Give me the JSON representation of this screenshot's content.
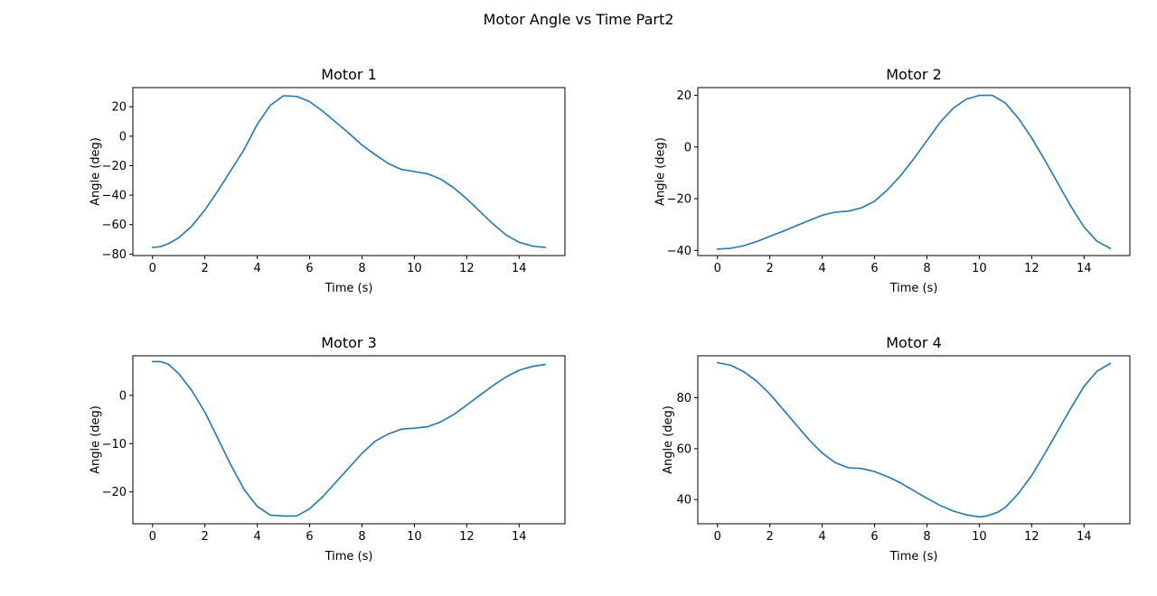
{
  "figure": {
    "title": "Motor Angle vs Time Part2"
  },
  "chart_data": [
    {
      "type": "line",
      "title": "Motor 1",
      "xlabel": "Time (s)",
      "ylabel": "Angle (deg)",
      "xlim": [
        -0.75,
        15.75
      ],
      "ylim": [
        -81,
        33
      ],
      "xticks": [
        0,
        2,
        4,
        6,
        8,
        10,
        12,
        14
      ],
      "yticks": [
        -80,
        -60,
        -40,
        -20,
        0,
        20
      ],
      "series": [
        {
          "color": "#1f77b4",
          "x": [
            0,
            0.3,
            0.6,
            1,
            1.5,
            2,
            2.5,
            3,
            3.5,
            4,
            4.5,
            5,
            5.5,
            6,
            6.5,
            7,
            7.5,
            8,
            8.5,
            9,
            9.5,
            10,
            10.5,
            11,
            11.5,
            12,
            12.5,
            13,
            13.5,
            14,
            14.5,
            15
          ],
          "y": [
            -75.5,
            -75,
            -73,
            -69,
            -61,
            -50,
            -37,
            -23,
            -9,
            8,
            21,
            27.5,
            27,
            23.5,
            17,
            9.5,
            2,
            -6,
            -12.5,
            -18.5,
            -22.5,
            -24,
            -25.5,
            -29,
            -35,
            -42.5,
            -51,
            -59.5,
            -67,
            -72,
            -74.5,
            -75.5
          ]
        }
      ]
    },
    {
      "type": "line",
      "title": "Motor 2",
      "xlabel": "Time (s)",
      "ylabel": "Angle (deg)",
      "xlim": [
        -0.75,
        15.75
      ],
      "ylim": [
        -42,
        23
      ],
      "xticks": [
        0,
        2,
        4,
        6,
        8,
        10,
        12,
        14
      ],
      "yticks": [
        -40,
        -20,
        0,
        20
      ],
      "series": [
        {
          "color": "#1f77b4",
          "x": [
            0,
            0.5,
            1,
            1.5,
            2,
            2.5,
            3,
            3.5,
            4,
            4.5,
            5,
            5.5,
            6,
            6.5,
            7,
            7.5,
            8,
            8.5,
            9,
            9.5,
            10,
            10.5,
            11,
            11.5,
            12,
            12.5,
            13,
            13.5,
            14,
            14.5,
            15
          ],
          "y": [
            -39.5,
            -39.2,
            -38.2,
            -36.6,
            -34.6,
            -32.6,
            -30.5,
            -28.4,
            -26.4,
            -25.2,
            -24.8,
            -23.5,
            -21,
            -16.5,
            -11,
            -4.5,
            2.5,
            9.5,
            15,
            18.5,
            20,
            20,
            17,
            11,
            3.5,
            -5,
            -14,
            -23,
            -31,
            -36.5,
            -39.2
          ]
        }
      ]
    },
    {
      "type": "line",
      "title": "Motor 3",
      "xlabel": "Time (s)",
      "ylabel": "Angle (deg)",
      "xlim": [
        -0.75,
        15.75
      ],
      "ylim": [
        -26.6,
        8.2
      ],
      "xticks": [
        0,
        2,
        4,
        6,
        8,
        10,
        12,
        14
      ],
      "yticks": [
        -20,
        -10,
        0
      ],
      "series": [
        {
          "color": "#1f77b4",
          "x": [
            0,
            0.3,
            0.6,
            1,
            1.5,
            2,
            2.5,
            3,
            3.5,
            4,
            4.5,
            5,
            5.5,
            6,
            6.5,
            7,
            7.5,
            8,
            8.5,
            9,
            9.5,
            10,
            10.5,
            11,
            11.5,
            12,
            12.5,
            13,
            13.5,
            14,
            14.5,
            15
          ],
          "y": [
            7,
            7,
            6.5,
            4.5,
            1,
            -3.5,
            -9,
            -14.5,
            -19.5,
            -23,
            -24.8,
            -25,
            -25,
            -23.5,
            -21,
            -18,
            -15,
            -12,
            -9.5,
            -8,
            -7,
            -6.8,
            -6.5,
            -5.5,
            -4,
            -2,
            0,
            2,
            3.8,
            5.2,
            6,
            6.4
          ]
        }
      ]
    },
    {
      "type": "line",
      "title": "Motor 4",
      "xlabel": "Time (s)",
      "ylabel": "Angle (deg)",
      "xlim": [
        -0.75,
        15.75
      ],
      "ylim": [
        30.5,
        96.5
      ],
      "xticks": [
        0,
        2,
        4,
        6,
        8,
        10,
        12,
        14
      ],
      "yticks": [
        40,
        60,
        80
      ],
      "series": [
        {
          "color": "#1f77b4",
          "x": [
            0,
            0.5,
            1,
            1.5,
            2,
            2.5,
            3,
            3.5,
            4,
            4.5,
            5,
            5.5,
            6,
            6.5,
            7,
            7.5,
            8,
            8.5,
            9,
            9.5,
            10,
            10.3,
            10.7,
            11,
            11.5,
            12,
            12.5,
            13,
            13.5,
            14,
            14.5,
            15
          ],
          "y": [
            93.8,
            92.8,
            90.3,
            86.5,
            81.5,
            75.5,
            69.5,
            63.5,
            58.3,
            54.5,
            52.5,
            52.2,
            51,
            49,
            46.5,
            43.5,
            40.5,
            37.7,
            35.5,
            34,
            33.2,
            33.6,
            35,
            37,
            42.5,
            49.5,
            58,
            67,
            76,
            84.5,
            90.5,
            93.5
          ]
        }
      ]
    }
  ]
}
